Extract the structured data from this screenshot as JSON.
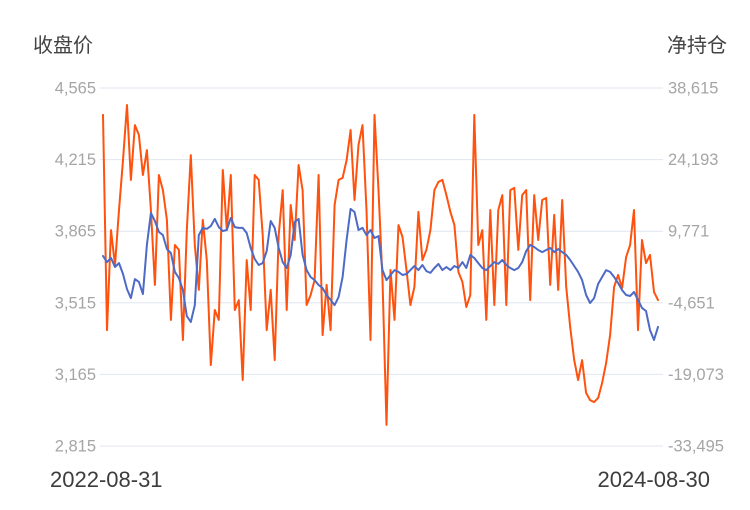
{
  "colors": {
    "price_line": "#4d6bc6",
    "net_line": "#ff520e",
    "gridline": "#e0e6f1",
    "tick_label": "#a5a5a5",
    "axis_title": "#434343",
    "date_label": "#3d3d3d",
    "background": "#ffffff"
  },
  "chart_data": {
    "type": "line",
    "grid": true,
    "legend_position": "none",
    "x_start": "2022-08-31",
    "x_end": "2024-08-30",
    "left_axis": {
      "title": "收盘价",
      "labels": [
        "4,565",
        "4,215",
        "3,865",
        "3,515",
        "3,165",
        "2,815"
      ],
      "max": 4565,
      "min": 2815,
      "tick_step": 350
    },
    "right_axis": {
      "title": "净持仓",
      "labels": [
        "38,615",
        "24,193",
        "9,771",
        "-4,651",
        "-19,073",
        "-33,495"
      ],
      "max": 38615,
      "min": -33495,
      "tick_step": 14422
    },
    "series": [
      {
        "name": "收盘价",
        "axis": "left",
        "color_key": "price_line",
        "values": [
          3744,
          3714,
          3734,
          3690,
          3709,
          3656,
          3582,
          3538,
          3631,
          3617,
          3558,
          3798,
          3954,
          3915,
          3861,
          3846,
          3778,
          3758,
          3666,
          3636,
          3577,
          3450,
          3421,
          3504,
          3846,
          3881,
          3876,
          3890,
          3925,
          3885,
          3866,
          3871,
          3930,
          3885,
          3881,
          3881,
          3856,
          3783,
          3729,
          3700,
          3709,
          3768,
          3915,
          3881,
          3783,
          3714,
          3685,
          3749,
          3910,
          3925,
          3749,
          3675,
          3641,
          3626,
          3602,
          3587,
          3553,
          3529,
          3504,
          3543,
          3641,
          3822,
          3974,
          3959,
          3871,
          3881,
          3846,
          3871,
          3832,
          3841,
          3675,
          3626,
          3651,
          3675,
          3666,
          3651,
          3656,
          3675,
          3695,
          3675,
          3700,
          3670,
          3661,
          3685,
          3705,
          3675,
          3690,
          3675,
          3695,
          3685,
          3714,
          3685,
          3749,
          3734,
          3709,
          3685,
          3675,
          3695,
          3714,
          3705,
          3724,
          3700,
          3685,
          3675,
          3685,
          3714,
          3768,
          3798,
          3788,
          3773,
          3763,
          3773,
          3783,
          3763,
          3778,
          3763,
          3749,
          3724,
          3695,
          3666,
          3626,
          3553,
          3514,
          3538,
          3607,
          3641,
          3675,
          3666,
          3641,
          3612,
          3577,
          3553,
          3548,
          3568,
          3529,
          3490,
          3475,
          3382,
          3333,
          3397
        ]
      },
      {
        "name": "净持仓",
        "axis": "right",
        "color_key": "net_line",
        "values": [
          33200,
          -10150,
          10000,
          2950,
          14050,
          24100,
          35200,
          20100,
          31150,
          29150,
          21100,
          26100,
          14050,
          -1050,
          21100,
          18050,
          12050,
          -8100,
          7000,
          6000,
          -12150,
          10000,
          25100,
          7000,
          -2050,
          12050,
          3950,
          -17200,
          -6100,
          -8100,
          22100,
          10000,
          21100,
          -6100,
          -4100,
          -20200,
          3950,
          -6100,
          21100,
          20100,
          9000,
          -10150,
          -2050,
          -16200,
          9000,
          18050,
          -6100,
          15050,
          8000,
          23100,
          18050,
          -5100,
          -3100,
          -50,
          21100,
          -11150,
          -1050,
          -10150,
          15050,
          20100,
          20500,
          24100,
          30150,
          16050,
          27150,
          31150,
          14050,
          -12150,
          33200,
          18050,
          -50,
          -29250,
          1950,
          -8100,
          11000,
          8600,
          1950,
          -5100,
          -1450,
          13650,
          3950,
          6000,
          10000,
          18050,
          19700,
          20100,
          17050,
          13650,
          11000,
          1550,
          -450,
          -5500,
          -3100,
          33200,
          7000,
          10000,
          -8100,
          14050,
          -5100,
          14050,
          17050,
          -5100,
          18050,
          18500,
          6000,
          17050,
          18050,
          -4100,
          17050,
          8000,
          16050,
          16450,
          -1050,
          13050,
          -2050,
          16050,
          -1450,
          -9550,
          -16200,
          -20200,
          -16200,
          -22800,
          -24250,
          -24650,
          -23850,
          -20800,
          -16800,
          -11150,
          -1450,
          950,
          -1650,
          4550,
          7000,
          14050,
          -10150,
          8000,
          3350,
          5000,
          -2450,
          -4100
        ]
      }
    ]
  }
}
